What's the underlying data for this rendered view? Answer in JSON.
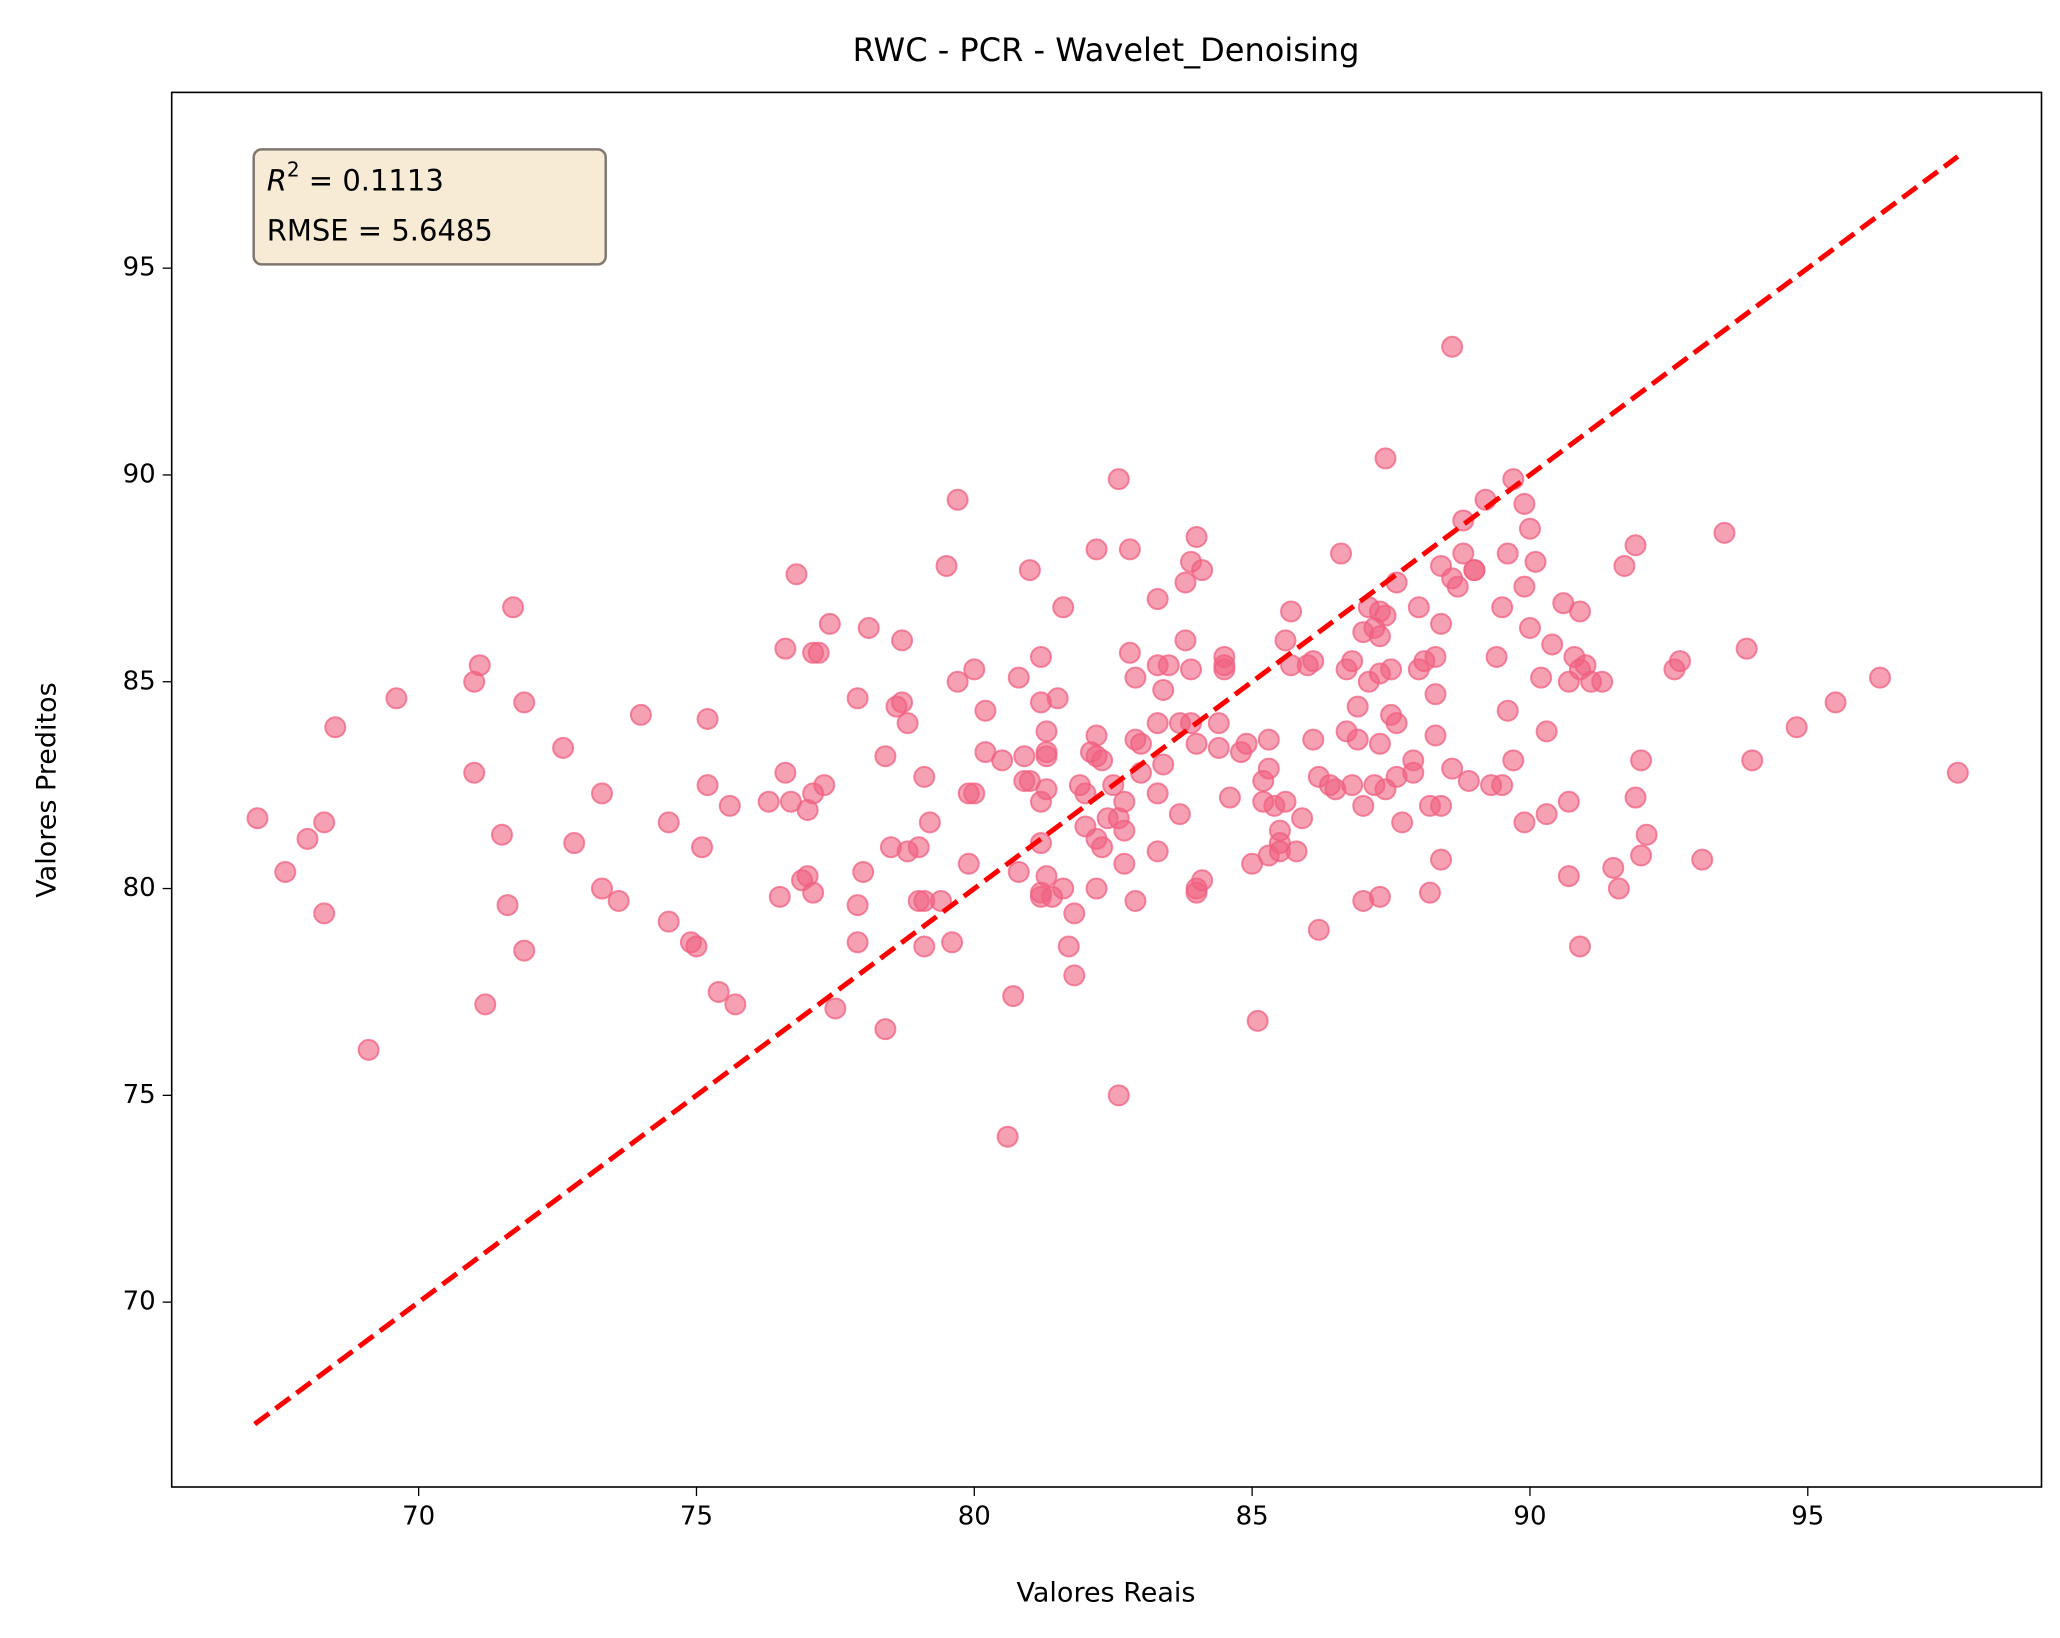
{
  "chart_data": {
    "type": "scatter",
    "title": "RWC - PCR - Wavelet_Denoising",
    "x_label": "Valores Reais",
    "y_label": "Valores Preditos",
    "annotation": {
      "r2_symbol": "R",
      "r2_exponent": "2",
      "r2_text": " = 0.1113",
      "rmse_text": "RMSE = 5.6485"
    },
    "color": "#f06080",
    "xlim": [
      65.556,
      99.206
    ],
    "ylim": [
      65.53,
      99.25
    ],
    "xticks": [
      70,
      75,
      80,
      85,
      90,
      95
    ],
    "yticks": [
      70,
      75,
      80,
      85,
      90,
      95
    ],
    "grid": false,
    "reference_line": {
      "x": [
        67.05,
        97.7
      ],
      "y": [
        67.05,
        97.7
      ],
      "color": "#ff0000"
    },
    "x": [
      67.1,
      67.6,
      68.0,
      68.3,
      68.3,
      68.5,
      69.1,
      69.6,
      71.0,
      71.0,
      71.1,
      71.2,
      71.5,
      71.6,
      71.7,
      71.9,
      71.9,
      72.6,
      72.8,
      73.3,
      73.3,
      73.6,
      74.0,
      74.5,
      74.5,
      74.9,
      75.0,
      75.1,
      75.2,
      75.2,
      75.4,
      75.6,
      75.7,
      76.3,
      76.5,
      76.6,
      76.6,
      76.7,
      76.8,
      76.9,
      77.0,
      77.0,
      77.1,
      77.1,
      77.1,
      77.2,
      77.3,
      77.4,
      77.5,
      77.9,
      77.9,
      77.9,
      78.0,
      78.1,
      78.4,
      78.4,
      78.5,
      78.6,
      78.7,
      78.7,
      78.8,
      78.8,
      79.0,
      79.0,
      79.1,
      79.1,
      79.1,
      79.2,
      79.4,
      79.5,
      79.6,
      79.7,
      79.7,
      79.9,
      79.9,
      80.0,
      80.0,
      80.2,
      80.2,
      80.5,
      80.6,
      80.7,
      80.8,
      80.8,
      80.9,
      80.9,
      81.0,
      81.0,
      81.2,
      81.2,
      81.2,
      81.2,
      81.2,
      81.2,
      81.3,
      81.3,
      81.3,
      81.3,
      81.3,
      81.4,
      81.5,
      81.6,
      81.6,
      81.7,
      81.8,
      81.8,
      81.9,
      82.0,
      82.0,
      82.1,
      82.2,
      82.2,
      82.2,
      82.2,
      82.2,
      82.3,
      82.3,
      82.4,
      82.5,
      82.6,
      82.6,
      82.6,
      82.7,
      82.7,
      82.7,
      82.8,
      82.8,
      82.9,
      82.9,
      82.9,
      83.0,
      83.0,
      83.3,
      83.3,
      83.3,
      83.3,
      83.3,
      83.4,
      83.4,
      83.5,
      83.7,
      83.7,
      83.8,
      83.8,
      83.9,
      83.9,
      83.9,
      84.0,
      84.0,
      84.0,
      84.0,
      84.1,
      84.1,
      84.4,
      84.4,
      84.5,
      84.5,
      84.5,
      84.6,
      84.8,
      84.9,
      85.0,
      85.1,
      85.2,
      85.2,
      85.3,
      85.3,
      85.3,
      85.4,
      85.5,
      85.5,
      85.5,
      85.6,
      85.6,
      85.7,
      85.7,
      85.8,
      85.9,
      86.0,
      86.1,
      86.1,
      86.2,
      86.2,
      86.4,
      86.5,
      86.6,
      86.7,
      86.7,
      86.8,
      86.8,
      86.9,
      86.9,
      87.0,
      87.0,
      87.0,
      87.1,
      87.1,
      87.2,
      87.2,
      87.3,
      87.3,
      87.3,
      87.3,
      87.3,
      87.4,
      87.4,
      87.4,
      87.5,
      87.5,
      87.6,
      87.6,
      87.6,
      87.7,
      87.9,
      87.9,
      88.0,
      88.0,
      88.1,
      88.2,
      88.2,
      88.3,
      88.3,
      88.3,
      88.4,
      88.4,
      88.4,
      88.4,
      88.6,
      88.6,
      88.6,
      88.7,
      88.8,
      88.8,
      88.9,
      89.0,
      89.0,
      89.2,
      89.3,
      89.4,
      89.5,
      89.5,
      89.6,
      89.6,
      89.7,
      89.7,
      89.9,
      89.9,
      89.9,
      90.0,
      90.0,
      90.1,
      90.2,
      90.3,
      90.3,
      90.4,
      90.6,
      90.7,
      90.7,
      90.7,
      90.8,
      90.9,
      90.9,
      90.9,
      91.0,
      91.1,
      91.3,
      91.5,
      91.6,
      91.7,
      91.9,
      91.9,
      92.0,
      92.0,
      92.1,
      92.6,
      92.7,
      93.1,
      93.5,
      93.9,
      94.0,
      94.8,
      95.5,
      96.3,
      97.7
    ],
    "values": [
      81.7,
      80.4,
      81.2,
      81.6,
      79.4,
      83.9,
      76.1,
      84.6,
      85.0,
      82.8,
      85.4,
      77.2,
      81.3,
      79.6,
      86.8,
      84.5,
      78.5,
      83.4,
      81.1,
      82.3,
      80.0,
      79.7,
      84.2,
      81.6,
      79.2,
      78.7,
      78.6,
      81.0,
      82.5,
      84.1,
      77.5,
      82.0,
      77.2,
      82.1,
      79.8,
      82.8,
      85.8,
      82.1,
      87.6,
      80.2,
      80.3,
      81.9,
      82.3,
      79.9,
      85.7,
      85.7,
      82.5,
      86.4,
      77.1,
      84.6,
      79.6,
      78.7,
      80.4,
      86.3,
      83.2,
      76.6,
      81.0,
      84.4,
      84.5,
      86.0,
      80.9,
      84.0,
      81.0,
      79.7,
      79.7,
      82.7,
      78.6,
      81.6,
      79.7,
      87.8,
      78.7,
      85.0,
      89.4,
      80.6,
      82.3,
      82.3,
      85.3,
      83.3,
      84.3,
      83.1,
      74.0,
      77.4,
      80.4,
      85.1,
      83.2,
      82.6,
      87.7,
      82.6,
      85.6,
      84.5,
      82.1,
      79.8,
      79.9,
      81.1,
      83.8,
      83.3,
      83.2,
      82.4,
      80.3,
      79.8,
      84.6,
      86.8,
      80.0,
      78.6,
      79.4,
      77.9,
      82.5,
      82.3,
      81.5,
      83.3,
      83.2,
      81.2,
      83.7,
      80.0,
      88.2,
      81.0,
      83.1,
      81.7,
      82.5,
      81.7,
      75.0,
      89.9,
      81.4,
      82.1,
      80.6,
      85.7,
      88.2,
      83.6,
      85.1,
      79.7,
      82.8,
      83.5,
      84.0,
      85.4,
      87.0,
      82.3,
      80.9,
      84.8,
      83.0,
      85.4,
      84.0,
      81.8,
      86.0,
      87.4,
      87.9,
      85.3,
      84.0,
      83.5,
      80.0,
      79.9,
      88.5,
      87.7,
      80.2,
      84.0,
      83.4,
      85.6,
      85.4,
      85.3,
      82.2,
      83.3,
      83.5,
      80.6,
      76.8,
      82.6,
      82.1,
      83.6,
      82.9,
      80.8,
      82.0,
      81.4,
      81.1,
      80.9,
      86.0,
      82.1,
      86.7,
      85.4,
      80.9,
      81.7,
      85.4,
      85.5,
      83.6,
      82.7,
      79.0,
      82.5,
      82.4,
      88.1,
      85.3,
      83.8,
      85.5,
      82.5,
      83.6,
      84.4,
      86.2,
      82.0,
      79.7,
      85.0,
      86.8,
      86.3,
      82.5,
      86.7,
      85.2,
      86.1,
      83.5,
      79.8,
      82.4,
      90.4,
      86.6,
      84.2,
      85.3,
      87.4,
      84.0,
      82.7,
      81.6,
      82.8,
      83.1,
      86.8,
      85.3,
      85.5,
      79.9,
      82.0,
      83.7,
      84.7,
      85.6,
      82.0,
      80.7,
      86.4,
      87.8,
      93.1,
      82.9,
      87.5,
      87.3,
      88.9,
      88.1,
      82.6,
      87.7,
      87.7,
      89.4,
      82.5,
      85.6,
      82.5,
      86.8,
      84.3,
      88.1,
      89.9,
      83.1,
      81.6,
      87.3,
      89.3,
      88.7,
      86.3,
      87.9,
      85.1,
      81.8,
      83.8,
      85.9,
      86.9,
      85.0,
      82.1,
      80.3,
      85.6,
      85.3,
      78.6,
      86.7,
      85.4,
      85.0,
      85.0,
      80.5,
      80.0,
      87.8,
      88.3,
      82.2,
      83.1,
      80.8,
      81.3,
      85.3,
      85.5,
      80.7,
      88.6,
      85.8,
      83.1,
      83.9,
      84.5,
      85.1,
      82.8
    ]
  }
}
